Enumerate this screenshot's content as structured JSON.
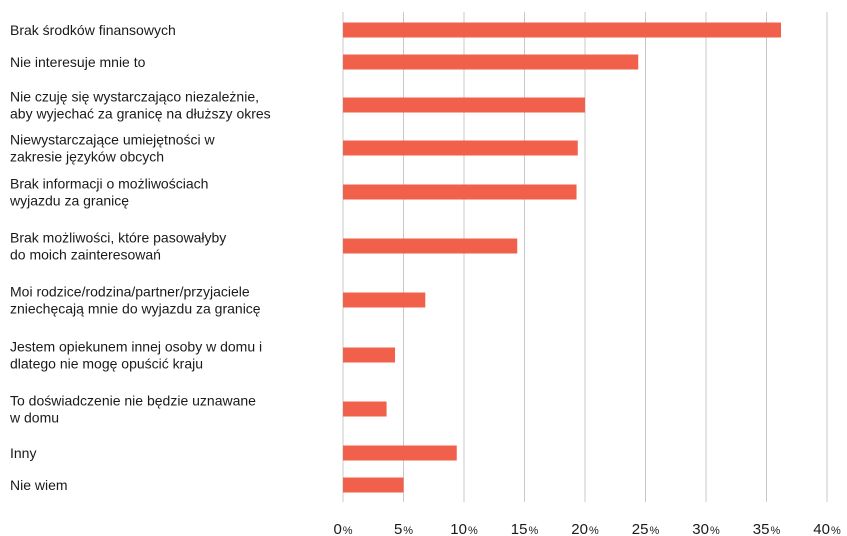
{
  "chart_data": {
    "type": "bar",
    "orientation": "horizontal",
    "categories": [
      "Brak środków finansowych",
      "Nie interesuje mnie to",
      "Nie czuję się wystarczająco niezależnie,\naby wyjechać za granicę na dłuższy okres",
      "Niewystarczające umiejętności w\nzakresie języków obcych",
      "Brak informacji o możliwościach\nwyjazdu za granicę",
      "Brak możliwości, które pasowałyby\ndo moich zainteresowań",
      "Moi rodzice/rodzina/partner/przyjaciele\nzniechęcają mnie do wyjazdu za granicę",
      "Jestem opiekunem innej osoby w domu i\ndlatego nie mogę opuścić kraju",
      "To doświadczenie nie będzie uznawane\nw domu",
      "Inny",
      "Nie wiem"
    ],
    "values": [
      36.2,
      24.4,
      20.0,
      19.4,
      19.3,
      14.4,
      6.8,
      4.3,
      3.6,
      9.4,
      5.0
    ],
    "xlim": [
      0,
      40
    ],
    "xticks": [
      {
        "num": "0",
        "unit": "%"
      },
      {
        "num": "5",
        "unit": "%"
      },
      {
        "num": "10",
        "unit": "%"
      },
      {
        "num": "15",
        "unit": "%"
      },
      {
        "num": "20",
        "unit": "%"
      },
      {
        "num": "25",
        "unit": "%"
      },
      {
        "num": "30",
        "unit": "%"
      },
      {
        "num": "35",
        "unit": "%"
      },
      {
        "num": "40",
        "unit": "%"
      }
    ],
    "grid": true,
    "bar_color": "#f0604a",
    "title": "",
    "xlabel": "",
    "ylabel": ""
  }
}
